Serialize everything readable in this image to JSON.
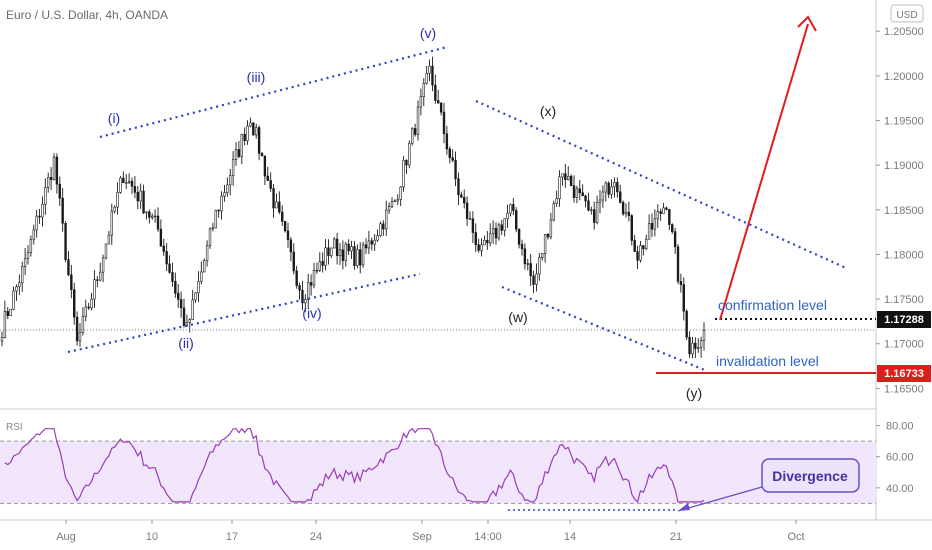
{
  "header": {
    "title": "Euro / U.S. Dollar, 4h, OANDA",
    "currency": "USD"
  },
  "colors": {
    "candle": "#1a1a1a",
    "wave_blue": "#2a2fb3",
    "channel_dotted": "#2f3fc8",
    "red": "#e21b1b",
    "rsi_line": "#9b3cb8",
    "rsi_band": "#f1e6fb",
    "divergence_box": "#ece4fb",
    "divergence_border": "#6a4fc8"
  },
  "chart_data": {
    "type": "candlestick",
    "symbol": "Euro / U.S. Dollar",
    "timeframe": "4h",
    "price_ylim": [
      1.1628,
      1.2085
    ],
    "y_ticks": [
      "1.16500",
      "1.17000",
      "1.17500",
      "1.18000",
      "1.18500",
      "1.19000",
      "1.19500",
      "1.20000",
      "1.20500"
    ],
    "x_ticks": [
      "Aug",
      "10",
      "17",
      "24",
      "Sep",
      "14:00",
      "14",
      "21",
      "Oct"
    ],
    "close_path": [
      {
        "i": 0,
        "p": 1.1718
      },
      {
        "i": 8,
        "p": 1.179
      },
      {
        "i": 18,
        "p": 1.1905
      },
      {
        "i": 26,
        "p": 1.17
      },
      {
        "i": 33,
        "p": 1.1775
      },
      {
        "i": 42,
        "p": 1.189
      },
      {
        "i": 48,
        "p": 1.1862
      },
      {
        "i": 54,
        "p": 1.1828
      },
      {
        "i": 64,
        "p": 1.1715
      },
      {
        "i": 74,
        "p": 1.1845
      },
      {
        "i": 86,
        "p": 1.1955
      },
      {
        "i": 94,
        "p": 1.186
      },
      {
        "i": 104,
        "p": 1.1755
      },
      {
        "i": 114,
        "p": 1.181
      },
      {
        "i": 124,
        "p": 1.1795
      },
      {
        "i": 136,
        "p": 1.186
      },
      {
        "i": 148,
        "p": 1.2005
      },
      {
        "i": 158,
        "p": 1.187
      },
      {
        "i": 166,
        "p": 1.18
      },
      {
        "i": 176,
        "p": 1.185
      },
      {
        "i": 184,
        "p": 1.1765
      },
      {
        "i": 194,
        "p": 1.1895
      },
      {
        "i": 204,
        "p": 1.184
      },
      {
        "i": 212,
        "p": 1.189
      },
      {
        "i": 220,
        "p": 1.18
      },
      {
        "i": 230,
        "p": 1.186
      },
      {
        "i": 238,
        "p": 1.1695
      },
      {
        "i": 243,
        "p": 1.1712
      }
    ],
    "candle_count": 244,
    "wave_labels": [
      {
        "label": "(i)",
        "style": "blue"
      },
      {
        "label": "(ii)",
        "style": "blue"
      },
      {
        "label": "(iii)",
        "style": "blue"
      },
      {
        "label": "(iv)",
        "style": "blue"
      },
      {
        "label": "(v)",
        "style": "blue"
      },
      {
        "label": "(w)",
        "style": "black"
      },
      {
        "label": "(x)",
        "style": "black"
      },
      {
        "label": "(y)",
        "style": "black"
      }
    ],
    "annotations": {
      "confirmation_label": "confirmation level",
      "confirmation_price": 1.17288,
      "confirmation_badge": "1.17288",
      "invalidation_label": "invalidation level",
      "invalidation_price": 1.16733,
      "invalidation_badge": "1.16733"
    },
    "rsi": {
      "label": "RSI",
      "ylim": [
        20,
        90
      ],
      "y_ticks": [
        "80.00",
        "60.00",
        "40.00"
      ],
      "band": [
        30,
        70
      ],
      "divergence_label": "Divergence"
    }
  }
}
